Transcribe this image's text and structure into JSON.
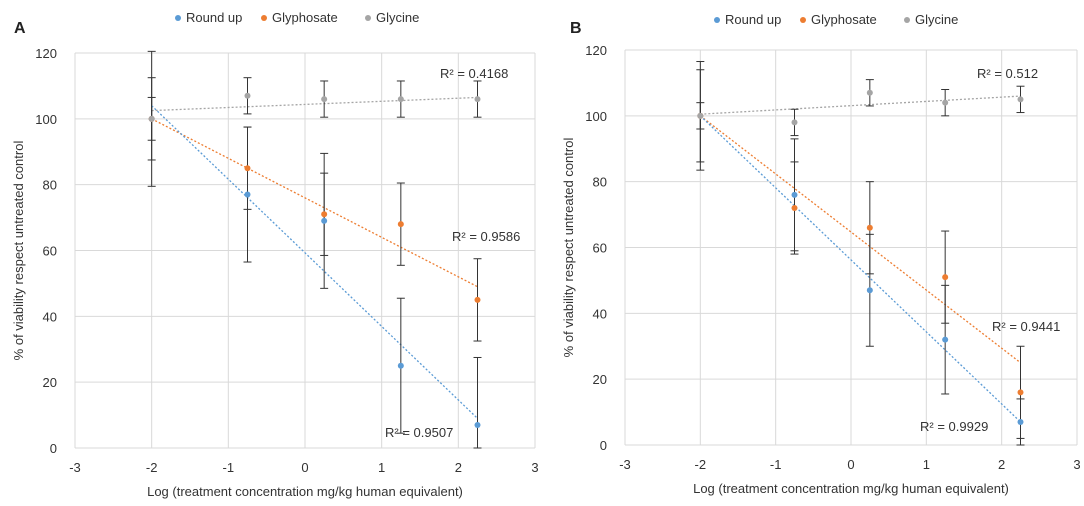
{
  "chart_data": [
    {
      "panel": "A",
      "type": "scatter",
      "legend": [
        "Round up",
        "Glyphosate",
        "Glycine"
      ],
      "legend_position": "top",
      "xlabel": "Log (treatment concentration mg/kg human equivalent)",
      "ylabel": "% of viability respect untreated control",
      "xlim": [
        -3,
        3
      ],
      "ylim": [
        0,
        120
      ],
      "xticks": [
        -3,
        -2,
        -1,
        0,
        1,
        2,
        3
      ],
      "yticks": [
        0,
        20,
        40,
        60,
        80,
        100,
        120
      ],
      "grid": true,
      "series": [
        {
          "name": "Round up",
          "color": "#5b9bd5",
          "x": [
            -2,
            -0.75,
            0.25,
            1.25,
            2.25
          ],
          "y": [
            100,
            77,
            69,
            25,
            7
          ],
          "err": [
            20.5,
            20.5,
            20.5,
            20.5,
            20.5
          ],
          "trend": {
            "x0": -2,
            "y0": 104,
            "x1": 2.25,
            "y1": 9
          },
          "r2": "R² = 0.9507"
        },
        {
          "name": "Glyphosate",
          "color": "#ed7d31",
          "x": [
            -2,
            -0.75,
            0.25,
            1.25,
            2.25
          ],
          "y": [
            100,
            85,
            71,
            68,
            45
          ],
          "err": [
            12.5,
            12.5,
            12.5,
            12.5,
            12.5
          ],
          "trend": {
            "x0": -2,
            "y0": 100,
            "x1": 2.25,
            "y1": 49
          },
          "r2": "R² = 0.9586"
        },
        {
          "name": "Glycine",
          "color": "#a5a5a5",
          "x": [
            -2,
            -0.75,
            0.25,
            1.25,
            2.25
          ],
          "y": [
            100,
            107,
            106,
            106,
            106
          ],
          "err": [
            6.5,
            5.5,
            5.5,
            5.5,
            5.5
          ],
          "trend": {
            "x0": -2,
            "y0": 102.5,
            "x1": 2.25,
            "y1": 106.5
          },
          "r2": "R² = 0.4168"
        }
      ]
    },
    {
      "panel": "B",
      "type": "scatter",
      "legend": [
        "Round up",
        "Glyphosate",
        "Glycine"
      ],
      "legend_position": "top",
      "xlabel": "Log (treatment concentration mg/kg human equivalent)",
      "ylabel": "% of viability respect untreated control",
      "xlim": [
        -3,
        3
      ],
      "ylim": [
        0,
        120
      ],
      "xticks": [
        -3,
        -2,
        -1,
        0,
        1,
        2,
        3
      ],
      "yticks": [
        0,
        20,
        40,
        60,
        80,
        100,
        120
      ],
      "grid": true,
      "series": [
        {
          "name": "Round up",
          "color": "#5b9bd5",
          "x": [
            -2,
            -0.75,
            0.25,
            1.25,
            2.25
          ],
          "y": [
            100,
            76,
            47,
            32,
            7
          ],
          "err": [
            16.5,
            17,
            17,
            16.5,
            7
          ],
          "trend": {
            "x0": -2,
            "y0": 100,
            "x1": 2.25,
            "y1": 7
          },
          "r2": "R² = 0.9929"
        },
        {
          "name": "Glyphosate",
          "color": "#ed7d31",
          "x": [
            -2,
            -0.75,
            0.25,
            1.25,
            2.25
          ],
          "y": [
            100,
            72,
            66,
            51,
            16
          ],
          "err": [
            14,
            14,
            14,
            14,
            14
          ],
          "trend": {
            "x0": -2,
            "y0": 100,
            "x1": 2.25,
            "y1": 25
          },
          "r2": "R² = 0.9441"
        },
        {
          "name": "Glycine",
          "color": "#a5a5a5",
          "x": [
            -2,
            -0.75,
            0.25,
            1.25,
            2.25
          ],
          "y": [
            100,
            98,
            107,
            104,
            105
          ],
          "err": [
            4,
            4,
            4,
            4,
            4
          ],
          "trend": {
            "x0": -2,
            "y0": 100.5,
            "x1": 2.25,
            "y1": 106
          },
          "r2": "R² = 0.512"
        }
      ]
    }
  ]
}
